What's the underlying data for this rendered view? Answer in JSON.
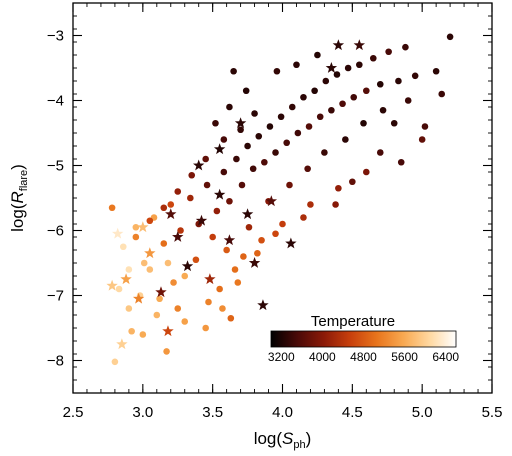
{
  "chart_data": {
    "type": "scatter",
    "xlabel": "log(S_ph)",
    "xlabel_parts": {
      "pre": "log(",
      "var": "S",
      "sub": "ph",
      "post": ")"
    },
    "ylabel": "log(R_flare)",
    "ylabel_parts": {
      "pre": "log(",
      "var": "R",
      "sub": "flare",
      "post": ")"
    },
    "xlim": [
      2.5,
      5.5
    ],
    "ylim": [
      -8.5,
      -2.5
    ],
    "xticks": [
      "2.5",
      "3.0",
      "3.5",
      "4.0",
      "4.5",
      "5.0",
      "5.5"
    ],
    "yticks": [
      "−8",
      "−7",
      "−6",
      "−5",
      "−4",
      "−3"
    ],
    "grid": false,
    "color_encoding": "temperature",
    "colorbar": {
      "title": "Temperature",
      "range": [
        3000,
        6600
      ],
      "ticks": [
        "3200",
        "4000",
        "4800",
        "5600",
        "6400"
      ],
      "stops": [
        "#000000",
        "#4a0a08",
        "#8b1a08",
        "#c8400c",
        "#e8741c",
        "#f8a850",
        "#ffd8a0",
        "#ffffff"
      ]
    },
    "series": [
      {
        "marker": "circle",
        "points": [
          {
            "x": 2.8,
            "y": -8.02,
            "t": 6000
          },
          {
            "x": 2.92,
            "y": -7.55,
            "t": 5700
          },
          {
            "x": 3.17,
            "y": -7.86,
            "t": 5400
          },
          {
            "x": 2.83,
            "y": -6.9,
            "t": 6100
          },
          {
            "x": 2.9,
            "y": -7.2,
            "t": 5900
          },
          {
            "x": 3.05,
            "y": -6.6,
            "t": 5800
          },
          {
            "x": 3.12,
            "y": -7.05,
            "t": 5600
          },
          {
            "x": 3.22,
            "y": -6.8,
            "t": 5300
          },
          {
            "x": 3.3,
            "y": -7.4,
            "t": 5500
          },
          {
            "x": 3.38,
            "y": -6.45,
            "t": 4700
          },
          {
            "x": 3.47,
            "y": -7.1,
            "t": 5200
          },
          {
            "x": 3.55,
            "y": -6.9,
            "t": 5000
          },
          {
            "x": 3.63,
            "y": -7.35,
            "t": 4900
          },
          {
            "x": 2.78,
            "y": -5.65,
            "t": 5100
          },
          {
            "x": 2.86,
            "y": -6.25,
            "t": 6200
          },
          {
            "x": 2.95,
            "y": -5.95,
            "t": 5700
          },
          {
            "x": 3.01,
            "y": -6.5,
            "t": 5800
          },
          {
            "x": 3.08,
            "y": -5.8,
            "t": 5500
          },
          {
            "x": 3.15,
            "y": -6.2,
            "t": 5000
          },
          {
            "x": 3.2,
            "y": -5.6,
            "t": 4600
          },
          {
            "x": 3.27,
            "y": -6.0,
            "t": 4400
          },
          {
            "x": 3.34,
            "y": -5.5,
            "t": 4200
          },
          {
            "x": 3.4,
            "y": -5.9,
            "t": 3900
          },
          {
            "x": 3.46,
            "y": -5.3,
            "t": 3700
          },
          {
            "x": 3.53,
            "y": -5.7,
            "t": 4100
          },
          {
            "x": 3.58,
            "y": -5.1,
            "t": 3500
          },
          {
            "x": 3.62,
            "y": -5.55,
            "t": 3800
          },
          {
            "x": 3.67,
            "y": -4.9,
            "t": 3400
          },
          {
            "x": 3.71,
            "y": -5.3,
            "t": 3600
          },
          {
            "x": 3.75,
            "y": -4.7,
            "t": 3300
          },
          {
            "x": 3.79,
            "y": -5.05,
            "t": 3450
          },
          {
            "x": 3.83,
            "y": -4.55,
            "t": 3300
          },
          {
            "x": 3.87,
            "y": -4.95,
            "t": 3550
          },
          {
            "x": 3.91,
            "y": -4.4,
            "t": 3250
          },
          {
            "x": 3.95,
            "y": -4.8,
            "t": 3400
          },
          {
            "x": 3.99,
            "y": -4.25,
            "t": 3300
          },
          {
            "x": 4.03,
            "y": -4.65,
            "t": 3500
          },
          {
            "x": 4.07,
            "y": -4.1,
            "t": 3350
          },
          {
            "x": 4.11,
            "y": -4.5,
            "t": 3450
          },
          {
            "x": 4.15,
            "y": -3.95,
            "t": 3300
          },
          {
            "x": 4.19,
            "y": -4.4,
            "t": 3600
          },
          {
            "x": 4.23,
            "y": -3.85,
            "t": 3250
          },
          {
            "x": 4.27,
            "y": -4.25,
            "t": 3500
          },
          {
            "x": 4.31,
            "y": -3.7,
            "t": 3300
          },
          {
            "x": 4.35,
            "y": -4.15,
            "t": 3400
          },
          {
            "x": 4.39,
            "y": -3.6,
            "t": 3250
          },
          {
            "x": 4.43,
            "y": -4.05,
            "t": 3550
          },
          {
            "x": 4.47,
            "y": -3.5,
            "t": 3300
          },
          {
            "x": 4.51,
            "y": -3.95,
            "t": 3450
          },
          {
            "x": 4.55,
            "y": -3.45,
            "t": 3300
          },
          {
            "x": 4.6,
            "y": -3.85,
            "t": 3600
          },
          {
            "x": 4.65,
            "y": -3.35,
            "t": 3400
          },
          {
            "x": 4.7,
            "y": -3.75,
            "t": 3250
          },
          {
            "x": 4.76,
            "y": -3.25,
            "t": 3500
          },
          {
            "x": 4.83,
            "y": -3.7,
            "t": 3300
          },
          {
            "x": 4.88,
            "y": -3.18,
            "t": 3400
          },
          {
            "x": 4.95,
            "y": -3.62,
            "t": 3350
          },
          {
            "x": 5.02,
            "y": -4.4,
            "t": 3500
          },
          {
            "x": 5.1,
            "y": -3.55,
            "t": 3300
          },
          {
            "x": 5.14,
            "y": -3.9,
            "t": 3400
          },
          {
            "x": 5.2,
            "y": -3.02,
            "t": 3300
          },
          {
            "x": 5.0,
            "y": -4.6,
            "t": 3700
          },
          {
            "x": 4.85,
            "y": -4.95,
            "t": 3500
          },
          {
            "x": 4.6,
            "y": -5.1,
            "t": 3900
          },
          {
            "x": 4.4,
            "y": -5.35,
            "t": 4100
          },
          {
            "x": 4.2,
            "y": -5.6,
            "t": 4300
          },
          {
            "x": 4.0,
            "y": -5.9,
            "t": 4500
          },
          {
            "x": 3.85,
            "y": -6.15,
            "t": 4700
          },
          {
            "x": 3.72,
            "y": -6.4,
            "t": 4900
          },
          {
            "x": 3.68,
            "y": -6.8,
            "t": 5100
          },
          {
            "x": 3.57,
            "y": -7.2,
            "t": 5300
          },
          {
            "x": 3.45,
            "y": -7.5,
            "t": 5400
          },
          {
            "x": 3.3,
            "y": -6.7,
            "t": 5600
          },
          {
            "x": 3.18,
            "y": -6.5,
            "t": 5800
          },
          {
            "x": 3.1,
            "y": -7.3,
            "t": 5700
          },
          {
            "x": 2.98,
            "y": -7.0,
            "t": 6000
          },
          {
            "x": 2.9,
            "y": -6.6,
            "t": 6200
          },
          {
            "x": 3.0,
            "y": -7.6,
            "t": 5600
          },
          {
            "x": 3.25,
            "y": -7.2,
            "t": 5200
          },
          {
            "x": 3.5,
            "y": -6.1,
            "t": 4500
          },
          {
            "x": 3.6,
            "y": -6.3,
            "t": 4800
          },
          {
            "x": 3.76,
            "y": -5.95,
            "t": 4200
          },
          {
            "x": 3.9,
            "y": -5.55,
            "t": 4000
          },
          {
            "x": 4.05,
            "y": -5.3,
            "t": 3800
          },
          {
            "x": 4.18,
            "y": -5.05,
            "t": 3600
          },
          {
            "x": 4.3,
            "y": -4.8,
            "t": 3400
          },
          {
            "x": 4.45,
            "y": -4.6,
            "t": 3300
          },
          {
            "x": 4.58,
            "y": -4.35,
            "t": 3250
          },
          {
            "x": 4.72,
            "y": -4.15,
            "t": 3300
          },
          {
            "x": 4.9,
            "y": -4.0,
            "t": 3400
          },
          {
            "x": 3.8,
            "y": -4.2,
            "t": 3300
          },
          {
            "x": 3.7,
            "y": -4.45,
            "t": 3350
          },
          {
            "x": 3.62,
            "y": -4.1,
            "t": 3300
          },
          {
            "x": 3.58,
            "y": -4.6,
            "t": 3500
          },
          {
            "x": 3.52,
            "y": -4.35,
            "t": 3400
          },
          {
            "x": 3.65,
            "y": -3.55,
            "t": 3300
          },
          {
            "x": 3.74,
            "y": -3.85,
            "t": 3250
          },
          {
            "x": 4.1,
            "y": -3.45,
            "t": 3300
          },
          {
            "x": 4.25,
            "y": -3.3,
            "t": 3250
          },
          {
            "x": 3.96,
            "y": -3.55,
            "t": 3350
          },
          {
            "x": 3.45,
            "y": -4.9,
            "t": 3700
          },
          {
            "x": 3.35,
            "y": -5.15,
            "t": 3900
          },
          {
            "x": 3.25,
            "y": -5.4,
            "t": 4100
          },
          {
            "x": 3.15,
            "y": -5.65,
            "t": 4300
          },
          {
            "x": 3.05,
            "y": -5.85,
            "t": 4600
          },
          {
            "x": 2.95,
            "y": -6.1,
            "t": 5200
          },
          {
            "x": 4.5,
            "y": -5.25,
            "t": 3700
          },
          {
            "x": 4.7,
            "y": -4.8,
            "t": 3500
          },
          {
            "x": 4.8,
            "y": -4.35,
            "t": 3300
          },
          {
            "x": 4.38,
            "y": -5.6,
            "t": 4000
          },
          {
            "x": 4.15,
            "y": -5.8,
            "t": 4300
          },
          {
            "x": 3.95,
            "y": -6.05,
            "t": 4600
          },
          {
            "x": 3.82,
            "y": -6.35,
            "t": 4900
          },
          {
            "x": 3.66,
            "y": -6.6,
            "t": 5000
          }
        ]
      },
      {
        "marker": "star",
        "points": [
          {
            "x": 2.78,
            "y": -6.85,
            "t": 5900
          },
          {
            "x": 2.82,
            "y": -6.05,
            "t": 6300
          },
          {
            "x": 2.85,
            "y": -7.75,
            "t": 6000
          },
          {
            "x": 2.88,
            "y": -6.75,
            "t": 5500
          },
          {
            "x": 2.97,
            "y": -7.05,
            "t": 5200
          },
          {
            "x": 3.05,
            "y": -6.35,
            "t": 5400
          },
          {
            "x": 3.18,
            "y": -7.55,
            "t": 4600
          },
          {
            "x": 3.13,
            "y": -6.95,
            "t": 3800
          },
          {
            "x": 3.25,
            "y": -6.1,
            "t": 3500
          },
          {
            "x": 3.32,
            "y": -6.55,
            "t": 3300
          },
          {
            "x": 3.42,
            "y": -5.85,
            "t": 3400
          },
          {
            "x": 3.48,
            "y": -6.75,
            "t": 4200
          },
          {
            "x": 3.55,
            "y": -5.45,
            "t": 3300
          },
          {
            "x": 3.62,
            "y": -6.15,
            "t": 3500
          },
          {
            "x": 3.75,
            "y": -5.75,
            "t": 3300
          },
          {
            "x": 3.8,
            "y": -6.5,
            "t": 3400
          },
          {
            "x": 3.86,
            "y": -7.15,
            "t": 3300
          },
          {
            "x": 3.92,
            "y": -5.55,
            "t": 3600
          },
          {
            "x": 4.06,
            "y": -6.2,
            "t": 3300
          },
          {
            "x": 3.4,
            "y": -5.0,
            "t": 3300
          },
          {
            "x": 3.55,
            "y": -4.75,
            "t": 3250
          },
          {
            "x": 4.4,
            "y": -3.15,
            "t": 3300
          },
          {
            "x": 4.55,
            "y": -3.15,
            "t": 3400
          },
          {
            "x": 4.35,
            "y": -3.5,
            "t": 3300
          },
          {
            "x": 3.7,
            "y": -4.35,
            "t": 3300
          },
          {
            "x": 3.2,
            "y": -5.75,
            "t": 3600
          },
          {
            "x": 3.0,
            "y": -5.95,
            "t": 5800
          }
        ]
      }
    ]
  }
}
